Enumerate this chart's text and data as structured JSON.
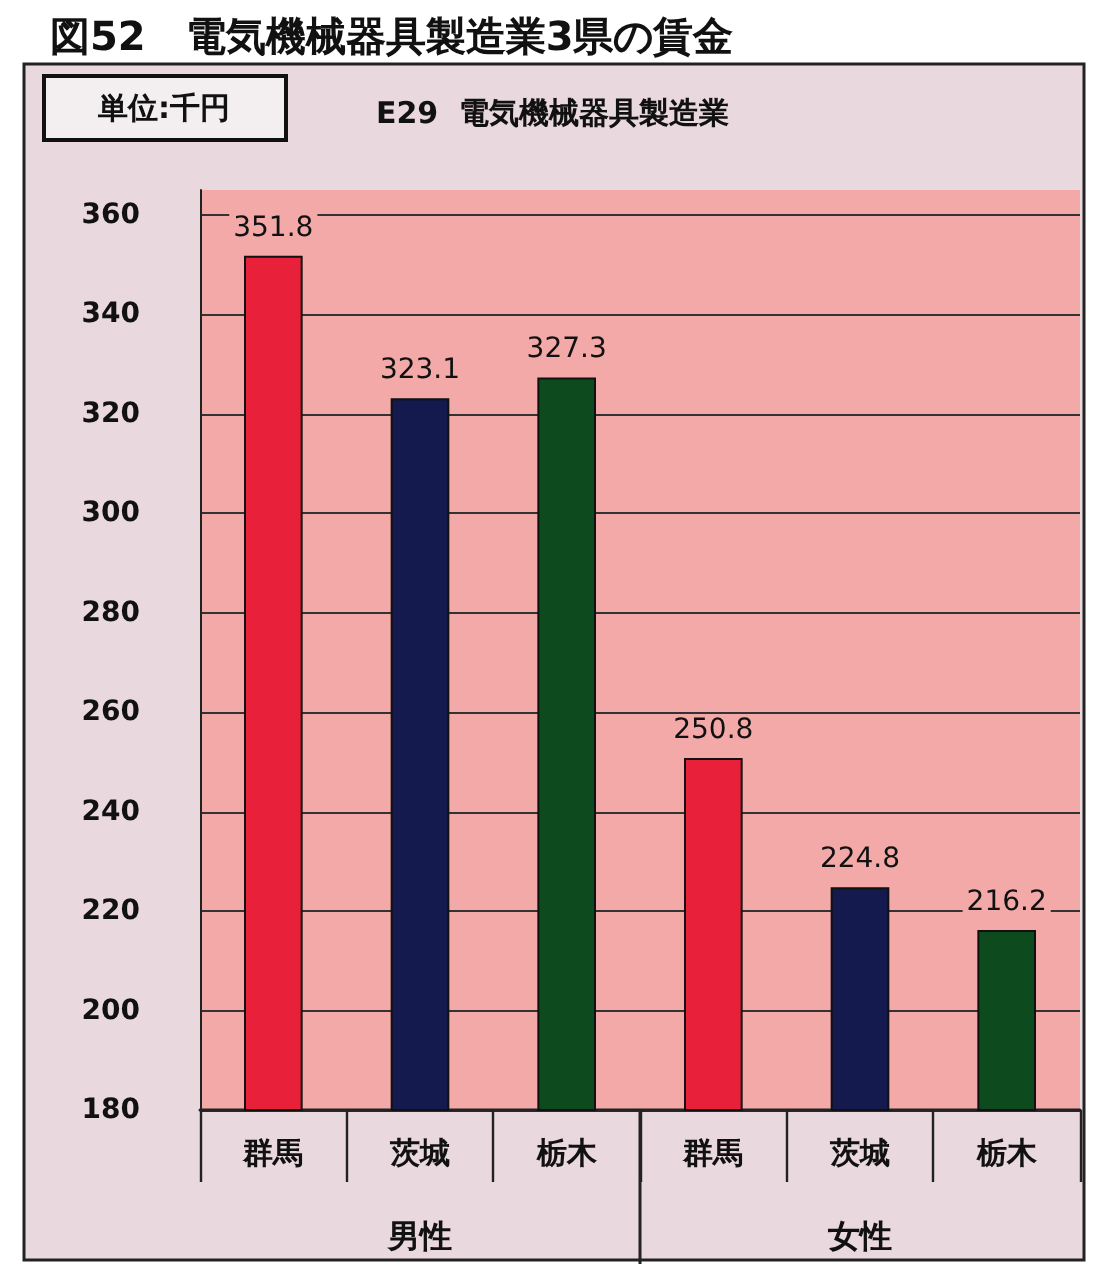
{
  "chart_data": {
    "type": "bar",
    "title": "図52　電気機械器具製造業3県の賃金",
    "subtitle": "E29  電気機械器具製造業",
    "annotations": [
      "単位:千円",
      "男性",
      "女性"
    ],
    "categories": [
      "群馬",
      "茨城",
      "栃木",
      "群馬",
      "茨城",
      "栃木"
    ],
    "values": [
      351.8,
      323.1,
      327.3,
      250.8,
      224.8,
      216.2
    ],
    "colors": [
      "#e8203a",
      "#141a4e",
      "#0d4a1e",
      "#e8203a",
      "#141a4e",
      "#0d4a1e"
    ],
    "ylim": [
      180,
      365
    ],
    "yticks": [
      180,
      200,
      220,
      240,
      260,
      280,
      300,
      320,
      340,
      360
    ],
    "grid": "y",
    "data_labels": true
  }
}
